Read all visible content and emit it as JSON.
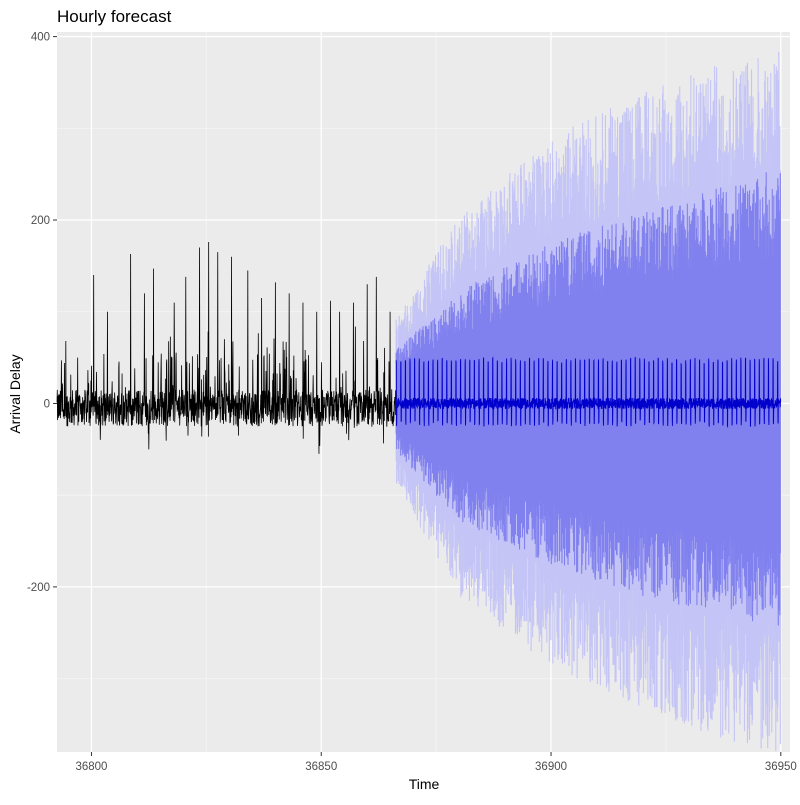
{
  "chart_data": {
    "type": "line",
    "title": "Hourly forecast",
    "xlabel": "Time",
    "ylabel": "Arrival Delay",
    "xlim": [
      36792.5,
      36952
    ],
    "ylim": [
      -380,
      405
    ],
    "x_ticks": [
      36800,
      36850,
      36900,
      36950
    ],
    "y_ticks": [
      -200,
      0,
      200,
      400
    ],
    "x_tick_labels": [
      "36800",
      "36850",
      "36900",
      "36950"
    ],
    "y_tick_labels": [
      "-200",
      "0",
      "200",
      "400"
    ],
    "grid": true,
    "legend": "none",
    "historical": {
      "x_range": [
        36792.5,
        36866.3
      ],
      "baseline": -5,
      "typical_range": [
        -40,
        60
      ],
      "peaks": [
        {
          "x": 36797,
          "y": 50
        },
        {
          "x": 36800.5,
          "y": 140
        },
        {
          "x": 36803.5,
          "y": 100
        },
        {
          "x": 36808.5,
          "y": 163
        },
        {
          "x": 36811.5,
          "y": 120
        },
        {
          "x": 36813.5,
          "y": 147
        },
        {
          "x": 36818,
          "y": 110
        },
        {
          "x": 36820.5,
          "y": 138
        },
        {
          "x": 36823.5,
          "y": 170
        },
        {
          "x": 36825.5,
          "y": 176
        },
        {
          "x": 36827.5,
          "y": 165
        },
        {
          "x": 36830.5,
          "y": 160
        },
        {
          "x": 36834,
          "y": 145
        },
        {
          "x": 36837,
          "y": 115
        },
        {
          "x": 36840,
          "y": 132
        },
        {
          "x": 36843,
          "y": 120
        },
        {
          "x": 36846,
          "y": 110
        },
        {
          "x": 36849,
          "y": 100
        },
        {
          "x": 36852,
          "y": 112
        },
        {
          "x": 36854,
          "y": 100
        },
        {
          "x": 36857,
          "y": 110
        },
        {
          "x": 36860,
          "y": 130
        },
        {
          "x": 36862,
          "y": 138
        },
        {
          "x": 36865,
          "y": 100
        }
      ],
      "troughs": [
        {
          "x": 36812.5,
          "y": -50
        },
        {
          "x": 36821,
          "y": -35
        },
        {
          "x": 36849.5,
          "y": -55
        },
        {
          "x": 36832,
          "y": -35
        },
        {
          "x": 36856,
          "y": -40
        }
      ]
    },
    "forecast": {
      "x_range": [
        36866.3,
        36950
      ],
      "point_forecast_range": [
        -25,
        50
      ],
      "interval_80": {
        "x": [
          36866.3,
          36880,
          36900,
          36920,
          36935,
          36950
        ],
        "upper": [
          50,
          105,
          150,
          180,
          200,
          220
        ],
        "lower": [
          -45,
          -110,
          -150,
          -180,
          -195,
          -210
        ]
      },
      "interval_95": {
        "x": [
          36866.3,
          36880,
          36900,
          36920,
          36935,
          36950
        ],
        "upper": [
          80,
          175,
          250,
          290,
          315,
          330
        ],
        "lower": [
          -75,
          -180,
          -245,
          -285,
          -310,
          -330
        ]
      }
    },
    "colors": {
      "panel": "#ebebeb",
      "grid_major": "#ffffff",
      "grid_minor": "#f5f5f5",
      "history_line": "#000000",
      "point_forecast": "#0000cc",
      "interval_80": "#8080ee",
      "interval_95": "#c4c4f6"
    }
  }
}
